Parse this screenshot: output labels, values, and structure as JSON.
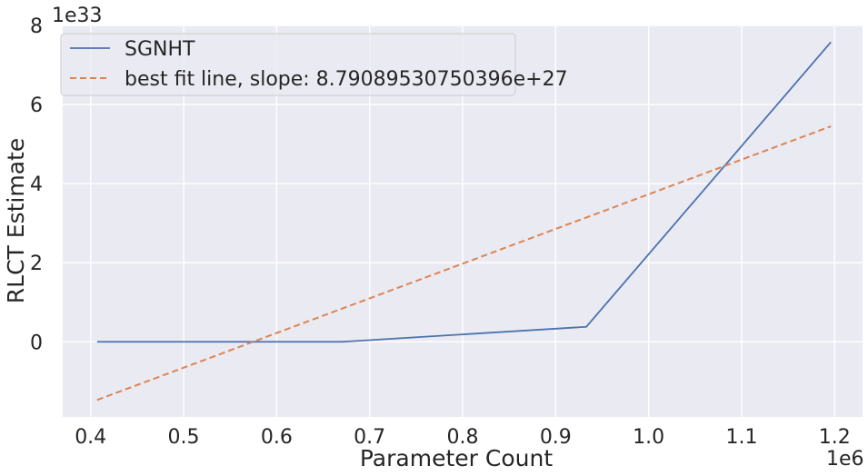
{
  "chart_data": {
    "type": "line",
    "xlabel": "Parameter Count",
    "ylabel": "RLCT Estimate",
    "x_offset_label": "1e6",
    "y_offset_label": "1e33",
    "xlim": [
      0.37,
      1.23
    ],
    "ylim": [
      -1.9,
      8.0
    ],
    "x_scale_factor": 1000000,
    "y_scale_factor": 1e+33,
    "x_ticks": [
      "0.4",
      "0.5",
      "0.6",
      "0.7",
      "0.8",
      "0.9",
      "1.0",
      "1.1",
      "1.2"
    ],
    "x_tick_values": [
      0.4,
      0.5,
      0.6,
      0.7,
      0.8,
      0.9,
      1.0,
      1.1,
      1.2
    ],
    "y_ticks": [
      "0",
      "2",
      "4",
      "6",
      "8"
    ],
    "y_tick_values": [
      0,
      2,
      4,
      6,
      8
    ],
    "grid": true,
    "legend_position": "top-left",
    "series": [
      {
        "name": "SGNHT",
        "style": "solid",
        "color": "#4c72b0",
        "x": [
          0.407,
          0.67,
          0.933,
          1.196
        ],
        "y": [
          0.0,
          0.0,
          0.38,
          7.58
        ]
      },
      {
        "name": "best fit line, slope: 8.79089530750396e+27",
        "style": "dashed",
        "color": "#dd8452",
        "x": [
          0.407,
          1.196
        ],
        "y": [
          -1.47,
          5.45
        ]
      }
    ],
    "colors": {
      "plot_background": "#eaeaf2",
      "grid": "#ffffff",
      "text": "#262626",
      "legend_background": "#eaeaf2",
      "legend_border": "#cccccc"
    }
  }
}
